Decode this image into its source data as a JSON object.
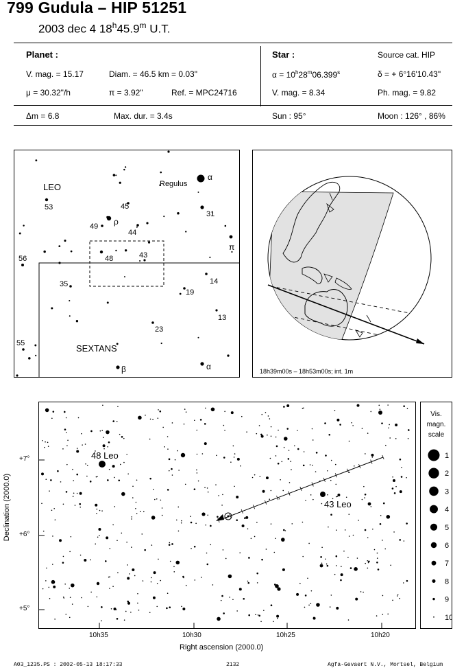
{
  "header": {
    "title": "799 Gudula  –  HIP 51251",
    "date": "2003 dec  4  18",
    "time_h": "h",
    "time_min": "45.9",
    "time_m": "m",
    "time_suffix": " U.T."
  },
  "planet": {
    "heading": "Planet :",
    "vmag": "V. mag. = 15.17",
    "diam": "Diam. = 46.5 km = 0.03\"",
    "mu": "μ =  30.32\"/h",
    "pi": "π =  3.92\"",
    "ref": "Ref. = MPC24716",
    "dm": "Δm = 6.8",
    "maxdur": "Max. dur. = 3.4s"
  },
  "star": {
    "heading": "Star :",
    "source": "Source cat.  HIP",
    "alpha_pre": "α = 10",
    "alpha_h": "h",
    "alpha_m_val": "28",
    "alpha_m": "m",
    "alpha_s_val": "06.399",
    "alpha_s": "s",
    "delta": "δ = + 6°16'10.43\"",
    "vmag": "V. mag. =  8.34",
    "phmag": "Ph. mag. =  9.82",
    "sun": "Sun :  95°",
    "moon": "Moon : 126° , 86%"
  },
  "finder": {
    "constellations": [
      "LEO",
      "SEXTANS"
    ],
    "labels": [
      "Regulus",
      "α",
      "53",
      "45",
      "ρ",
      "49",
      "44",
      "31",
      "π",
      "56",
      "48",
      "43",
      "35",
      "14",
      "19",
      "13",
      "23",
      "55",
      "β",
      "α"
    ]
  },
  "globe": {
    "caption": "18h39m00s – 18h53m00s; int.  1m"
  },
  "chart": {
    "y_axis_label": "Declination (2000.0)",
    "x_axis_label": "Right ascension (2000.0)",
    "x_ticks": [
      "10h35",
      "10h30",
      "10h25",
      "10h20"
    ],
    "y_ticks": [
      "+7°",
      "+6°",
      "+5°"
    ],
    "star_labels": [
      "48 Leo",
      "43 Leo"
    ]
  },
  "legend": {
    "title": "Vis.\nmagn.\nscale",
    "title_lines": [
      "Vis.",
      "magn.",
      "scale"
    ],
    "magnitudes": [
      "1",
      "2",
      "3",
      "4",
      "5",
      "6",
      "7",
      "8",
      "9",
      "10"
    ]
  },
  "footer": {
    "file": "A03_1235.PS : 2002-05-13 18:17:33",
    "page": "2132",
    "printer": "Agfa-Gevaert N.V., Mortsel, Belgium"
  }
}
